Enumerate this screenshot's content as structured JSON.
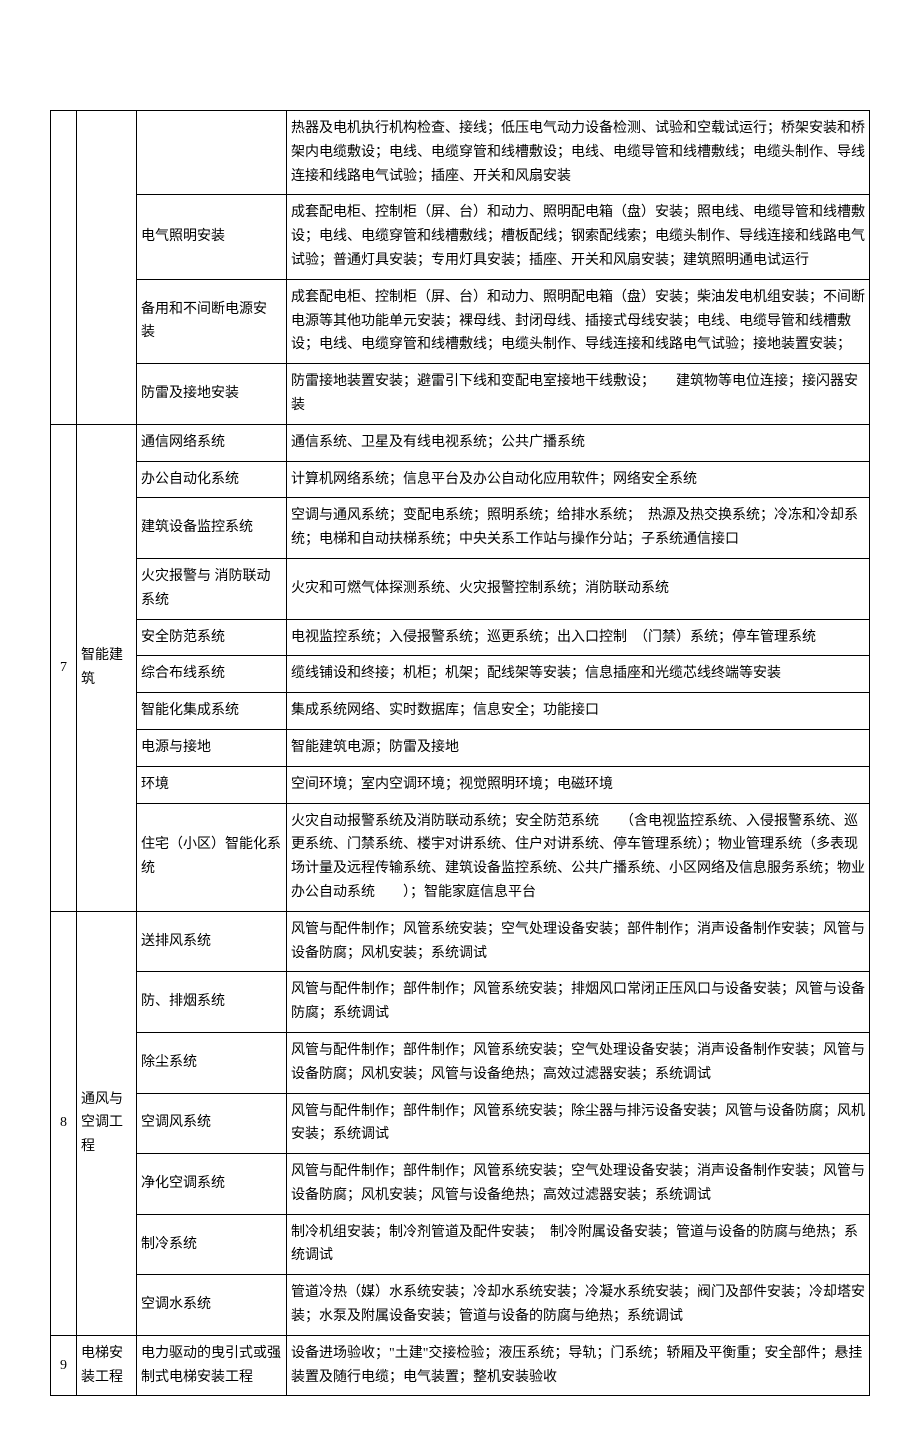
{
  "colors": {
    "border": "#000000",
    "text": "#000000",
    "background": "#ffffff"
  },
  "fontsize_pt": 10.5,
  "rows": [
    {
      "num": "",
      "cat": "",
      "sub": "",
      "desc": "热器及电机执行机构检查、接线；低压电气动力设备检测、试验和空载试运行；桥架安装和桥架内电缆敷设；电线、电缆穿管和线槽敷设；电线、电缆导管和线槽敷线；电缆头制作、导线连接和线路电气试验；插座、开关和风扇安装"
    },
    {
      "num": "",
      "cat": "",
      "sub": "电气照明安装",
      "desc": "成套配电柜、控制柜（屏、台）和动力、照明配电箱（盘）安装；照电线、电缆导管和线槽敷设；电线、电缆穿管和线槽敷线；槽板配线；钢索配线索；电缆头制作、导线连接和线路电气试验；普通灯具安装；专用灯具安装；插座、开关和风扇安装；建筑照明通电试运行"
    },
    {
      "num": "",
      "cat": "",
      "sub": "备用和不间断电源安　装",
      "desc": "成套配电柜、控制柜（屏、台）和动力、照明配电箱（盘）安装；柴油发电机组安装；不间断电源等其他功能单元安装；裸母线、封闭母线、插接式母线安装；电线、电缆导管和线槽敷设；电线、电缆穿管和线槽敷线；电缆头制作、导线连接和线路电气试验；接地装置安装；"
    },
    {
      "num": "",
      "cat": "",
      "sub": "防雷及接地安装",
      "desc": "防雷接地装置安装；避雷引下线和变配电室接地干线敷设；　　建筑物等电位连接；接闪器安装"
    },
    {
      "num": "7",
      "cat": "智能建　筑",
      "sub": "通信网络系统",
      "desc": "通信系统、卫星及有线电视系统；公共广播系统"
    },
    {
      "num": "",
      "cat": "",
      "sub": "办公自动化系统",
      "desc": "计算机网络系统；信息平台及办公自动化应用软件；网络安全系统"
    },
    {
      "num": "",
      "cat": "",
      "sub": "建筑设备监控系统",
      "desc": "空调与通风系统；变配电系统；照明系统；给排水系统；　热源及热交换系统；冷冻和冷却系统；电梯和自动扶梯系统；中央关系工作站与操作分站；子系统通信接口"
    },
    {
      "num": "",
      "cat": "",
      "sub": "火灾报警与\n消防联动系统",
      "desc": "火灾和可燃气体探测系统、火灾报警控制系统；消防联动系统"
    },
    {
      "num": "",
      "cat": "",
      "sub": "安全防范系统",
      "desc": "电视监控系统；入侵报警系统；巡更系统；出入口控制　（门禁）系统；停车管理系统"
    },
    {
      "num": "",
      "cat": "",
      "sub": "综合布线系统",
      "desc": "缆线铺设和终接；机柜；机架；配线架等安装；信息插座和光缆芯线终端等安装"
    },
    {
      "num": "",
      "cat": "",
      "sub": "智能化集成系统",
      "desc": "集成系统网络、实时数据库；信息安全；功能接口"
    },
    {
      "num": "",
      "cat": "",
      "sub": "电源与接地",
      "desc": "智能建筑电源；防雷及接地"
    },
    {
      "num": "",
      "cat": "",
      "sub": "环境",
      "desc": "空间环境；室内空调环境；视觉照明环境；电磁环境"
    },
    {
      "num": "",
      "cat": "",
      "sub": "住宅（小区）智能化系统",
      "desc": "火灾自动报警系统及消防联动系统；安全防范系统　　（含电视监控系统、入侵报警系统、巡更系统、门禁系统、楼宇对讲系统、住户对讲系统、停车管理系统）；物业管理系统（多表现场计量及远程传输系统、建筑设备监控系统、公共广播系统、小区网络及信息服务系统；物业办公自动系统　　）；智能家庭信息平台"
    },
    {
      "num": "8",
      "cat": "通风与空调工　程",
      "sub": "送排风系统",
      "desc": "风管与配件制作；风管系统安装；空气处理设备安装；部件制作；消声设备制作安装；风管与设备防腐；风机安装；系统调试"
    },
    {
      "num": "",
      "cat": "",
      "sub": "防、排烟系统",
      "desc": "风管与配件制作；部件制作；风管系统安装；排烟风口常闭正压风口与设备安装；风管与设备防腐；系统调试"
    },
    {
      "num": "",
      "cat": "",
      "sub": "除尘系统",
      "desc": "风管与配件制作；部件制作；风管系统安装；空气处理设备安装；消声设备制作安装；风管与设备防腐；风机安装；风管与设备绝热；高效过滤器安装；系统调试"
    },
    {
      "num": "",
      "cat": "",
      "sub": "空调风系统",
      "desc": "风管与配件制作；部件制作；风管系统安装；除尘器与排污设备安装；风管与设备防腐；风机安装；系统调试"
    },
    {
      "num": "",
      "cat": "",
      "sub": "净化空调系统",
      "desc": "风管与配件制作；部件制作；风管系统安装；空气处理设备安装；消声设备制作安装；风管与设备防腐；风机安装；风管与设备绝热；高效过滤器安装；系统调试"
    },
    {
      "num": "",
      "cat": "",
      "sub": "制冷系统",
      "desc": "制冷机组安装；制冷剂管道及配件安装；　制冷附属设备安装；管道与设备的防腐与绝热；系统调试"
    },
    {
      "num": "",
      "cat": "",
      "sub": "空调水系统",
      "desc": "管道冷热（媒）水系统安装；冷却水系统安装；冷凝水系统安装；阀门及部件安装；冷却塔安装；水泵及附属设备安装；管道与设备的防腐与绝热；系统调试"
    },
    {
      "num": "9",
      "cat": "电梯安装工程",
      "sub": "电力驱动的曳引式或强制式电梯安装工程",
      "desc": "设备进场验收；\"土建\"交接检验；液压系统；导轨；门系统；轿厢及平衡重；安全部件；悬挂装置及随行电缆；电气装置；整机安装验收"
    }
  ],
  "groups": [
    {
      "start": 0,
      "numSpan": 4,
      "catSpan": 4
    },
    {
      "start": 4,
      "numSpan": 10,
      "catSpan": 10
    },
    {
      "start": 14,
      "numSpan": 7,
      "catSpan": 7
    },
    {
      "start": 21,
      "numSpan": 1,
      "catSpan": 1
    }
  ]
}
